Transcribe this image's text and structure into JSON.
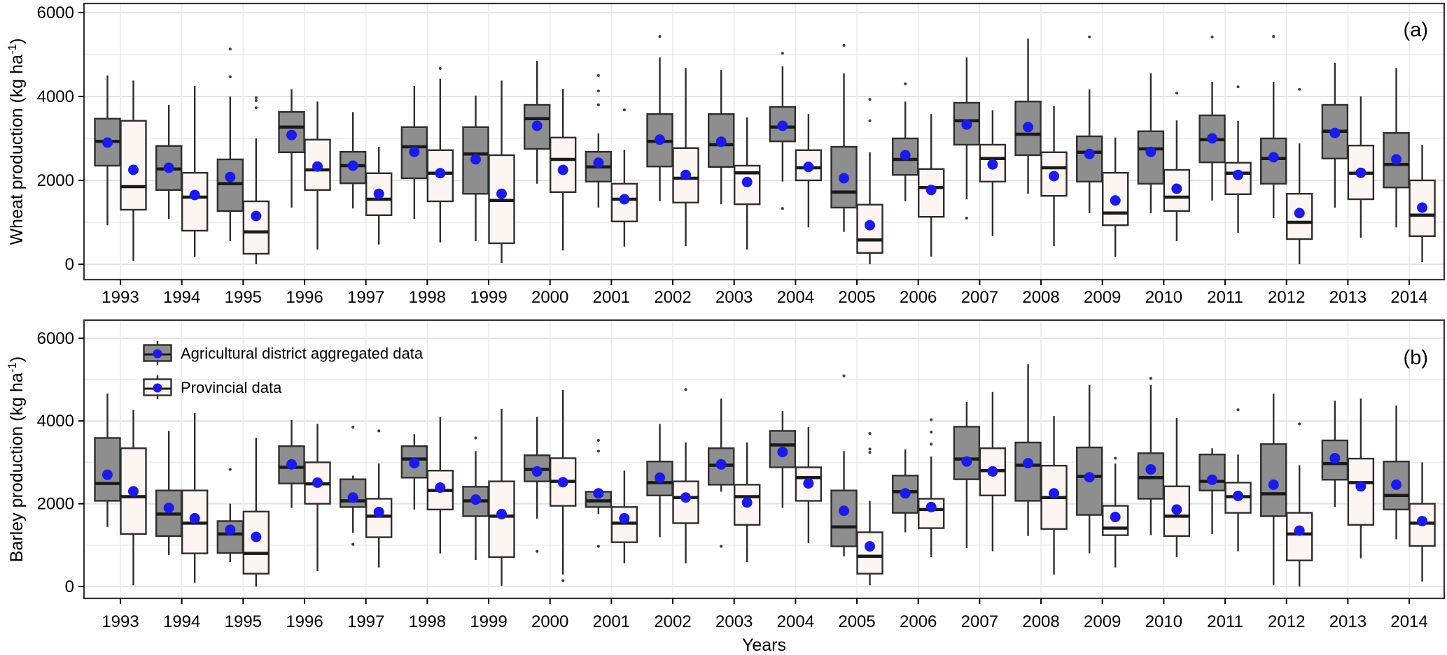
{
  "xlabel": "Years",
  "panel_tags": {
    "a": "(a)",
    "b": "(b)"
  },
  "legend": {
    "position": "top-left inside panel (b)",
    "items": [
      {
        "label": "Agricultural district aggregated data",
        "swatch_fill": "#8e8e8e"
      },
      {
        "label": "Provincial data",
        "swatch_fill": "#fdf5f1"
      }
    ]
  },
  "colors": {
    "district_box_fill": "#8e8e8e",
    "provincial_box_fill": "#fdf5f1",
    "box_border": "#2e2e2e",
    "median_line": "#1a1a1a",
    "mean_dot": "#1a1af0",
    "outlier_dot": "#404040",
    "grid_major": "#e3e3e3",
    "grid_minor": "#eeeeee",
    "frame": "#333333",
    "background": "#ffffff"
  },
  "chart_data": [
    {
      "type": "boxplot",
      "panel_label": "(a)",
      "ylabel": "Wheat production (kg ha⁻¹)",
      "xlabel": "Years",
      "ylim": [
        0,
        6000
      ],
      "yticks": [
        0,
        2000,
        4000,
        6000
      ],
      "grid": "light gray horizontal lines every 1000, vertical line per year",
      "legend_position": "none (legend shown in panel b)",
      "categories": [
        1993,
        1994,
        1995,
        1996,
        1997,
        1998,
        1999,
        2000,
        2001,
        2002,
        2003,
        2004,
        2005,
        2006,
        2007,
        2008,
        2009,
        2010,
        2011,
        2012,
        2013,
        2014
      ],
      "box_format": [
        "whisker_low",
        "q1",
        "median",
        "q3",
        "whisker_high",
        "mean",
        "outliers"
      ],
      "series": [
        {
          "name": "Agricultural district aggregated data",
          "fill": "#8e8e8e",
          "boxes": [
            [
              930,
              2350,
              2930,
              3470,
              4500,
              2900,
              []
            ],
            [
              1080,
              1770,
              2270,
              2820,
              3800,
              2300,
              []
            ],
            [
              550,
              1270,
              1920,
              2500,
              4000,
              2080,
              [
                5130,
                4470
              ]
            ],
            [
              1350,
              2670,
              3270,
              3630,
              4170,
              3080,
              []
            ],
            [
              1330,
              1930,
              2350,
              2680,
              3630,
              2350,
              []
            ],
            [
              1080,
              2050,
              2800,
              3270,
              4250,
              2680,
              []
            ],
            [
              550,
              1680,
              2630,
              3270,
              4020,
              2500,
              []
            ],
            [
              1920,
              2750,
              3470,
              3800,
              4850,
              3300,
              []
            ],
            [
              1350,
              1970,
              2320,
              2680,
              3120,
              2420,
              [
                4500,
                4130,
                3800
              ]
            ],
            [
              1500,
              2330,
              2930,
              3580,
              4930,
              2970,
              [
                5430
              ]
            ],
            [
              1430,
              2320,
              2850,
              3580,
              4630,
              2920,
              []
            ],
            [
              1970,
              2930,
              3270,
              3750,
              4720,
              3300,
              [
                5030,
                1330
              ]
            ],
            [
              770,
              1350,
              1720,
              2800,
              4550,
              2050,
              [
                5220
              ]
            ],
            [
              1500,
              2130,
              2500,
              3000,
              3880,
              2600,
              [
                4300
              ]
            ],
            [
              1550,
              2850,
              3420,
              3850,
              4930,
              3330,
              [
                1100
              ]
            ],
            [
              1680,
              2600,
              3100,
              3880,
              5380,
              3270,
              []
            ],
            [
              1220,
              1970,
              2670,
              3050,
              4170,
              2630,
              [
                5420
              ]
            ],
            [
              1220,
              1920,
              2750,
              3170,
              4550,
              2680,
              []
            ],
            [
              1520,
              2430,
              2970,
              3550,
              4350,
              3000,
              [
                5420
              ]
            ],
            [
              1100,
              1920,
              2520,
              3000,
              4350,
              2550,
              [
                5430
              ]
            ],
            [
              1350,
              2520,
              3170,
              3800,
              4800,
              3130,
              []
            ],
            [
              880,
              1830,
              2380,
              3130,
              4680,
              2500,
              []
            ]
          ]
        },
        {
          "name": "Provincial data",
          "fill": "#fdf5f1",
          "boxes": [
            [
              80,
              1300,
              1850,
              3420,
              4380,
              2250,
              []
            ],
            [
              170,
              800,
              1600,
              2180,
              4250,
              1650,
              []
            ],
            [
              0,
              250,
              770,
              1500,
              3000,
              1150,
              [
                3970,
                3900,
                3730
              ]
            ],
            [
              350,
              1770,
              2250,
              2970,
              3880,
              2330,
              []
            ],
            [
              470,
              1170,
              1550,
              2170,
              2800,
              1680,
              []
            ],
            [
              520,
              1500,
              2170,
              2720,
              4420,
              2170,
              [
                4670
              ]
            ],
            [
              30,
              500,
              1520,
              2600,
              4380,
              1680,
              []
            ],
            [
              330,
              1720,
              2500,
              3020,
              4180,
              2250,
              []
            ],
            [
              420,
              1020,
              1550,
              1920,
              2720,
              1550,
              [
                3680
              ]
            ],
            [
              430,
              1470,
              2050,
              2770,
              4680,
              2130,
              []
            ],
            [
              350,
              1430,
              2180,
              2350,
              3500,
              1960,
              []
            ],
            [
              880,
              2000,
              2300,
              2720,
              3580,
              2320,
              []
            ],
            [
              0,
              270,
              580,
              1420,
              2670,
              930,
              [
                3930,
                3420
              ]
            ],
            [
              180,
              1130,
              1830,
              2270,
              3580,
              1770,
              []
            ],
            [
              670,
              1970,
              2520,
              2850,
              3670,
              2380,
              []
            ],
            [
              430,
              1630,
              2300,
              2670,
              3770,
              2100,
              []
            ],
            [
              170,
              930,
              1220,
              2180,
              3020,
              1520,
              []
            ],
            [
              550,
              1270,
              1600,
              2250,
              3430,
              1800,
              [
                4080
              ]
            ],
            [
              750,
              1670,
              2170,
              2420,
              3420,
              2130,
              [
                4230
              ]
            ],
            [
              0,
              600,
              1000,
              1680,
              2880,
              1220,
              [
                4170
              ]
            ],
            [
              630,
              1550,
              2170,
              2830,
              4000,
              2180,
              []
            ],
            [
              50,
              670,
              1170,
              2000,
              2850,
              1350,
              []
            ]
          ]
        }
      ]
    },
    {
      "type": "boxplot",
      "panel_label": "(b)",
      "ylabel": "Barley production (kg ha⁻¹)",
      "xlabel": "Years",
      "ylim": [
        0,
        6000
      ],
      "yticks": [
        0,
        2000,
        4000,
        6000
      ],
      "grid": "light gray horizontal lines every 1000, vertical line per year",
      "legend_position": "top-left inside panel",
      "categories": [
        1993,
        1994,
        1995,
        1996,
        1997,
        1998,
        1999,
        2000,
        2001,
        2002,
        2003,
        2004,
        2005,
        2006,
        2007,
        2008,
        2009,
        2010,
        2011,
        2012,
        2013,
        2014
      ],
      "box_format": [
        "whisker_low",
        "q1",
        "median",
        "q3",
        "whisker_high",
        "mean",
        "outliers"
      ],
      "series": [
        {
          "name": "Agricultural district aggregated data",
          "fill": "#8e8e8e",
          "boxes": [
            [
              1440,
              2070,
              2490,
              3590,
              4660,
              2700,
              []
            ],
            [
              760,
              1220,
              1750,
              2320,
              3760,
              1900,
              []
            ],
            [
              590,
              810,
              1270,
              1580,
              2000,
              1370,
              [
                2830
              ]
            ],
            [
              1900,
              2490,
              2880,
              3390,
              4020,
              2950,
              []
            ],
            [
              1300,
              1920,
              2070,
              2590,
              2680,
              2150,
              [
                3850,
                1020
              ]
            ],
            [
              1860,
              2630,
              3080,
              3390,
              3680,
              2980,
              []
            ],
            [
              640,
              1700,
              2070,
              2410,
              3270,
              2100,
              [
                3590
              ]
            ],
            [
              1640,
              2540,
              2830,
              3170,
              4100,
              2780,
              [
                850
              ]
            ],
            [
              1750,
              1920,
              2070,
              2290,
              2300,
              2250,
              [
                3530,
                3270,
                970
              ]
            ],
            [
              1190,
              2200,
              2510,
              3020,
              3930,
              2630,
              []
            ],
            [
              2290,
              2460,
              2930,
              3340,
              4540,
              2950,
              [
                970
              ]
            ],
            [
              1900,
              2880,
              3420,
              3760,
              4240,
              3250,
              []
            ],
            [
              730,
              970,
              1440,
              2320,
              3270,
              1830,
              [
                5090
              ]
            ],
            [
              1310,
              1780,
              2290,
              2680,
              3310,
              2250,
              []
            ],
            [
              930,
              2590,
              3080,
              3860,
              4460,
              3020,
              []
            ],
            [
              1220,
              2070,
              2930,
              3480,
              5370,
              2980,
              []
            ],
            [
              800,
              1730,
              2660,
              3360,
              4870,
              2640,
              []
            ],
            [
              1240,
              2120,
              2630,
              3220,
              4870,
              2830,
              [
                5030
              ]
            ],
            [
              1270,
              2320,
              2540,
              3190,
              3340,
              2580,
              []
            ],
            [
              30,
              1700,
              2240,
              3440,
              4660,
              2460,
              []
            ],
            [
              1920,
              2580,
              2970,
              3530,
              4490,
              3100,
              []
            ],
            [
              1140,
              1860,
              2200,
              3020,
              4370,
              2460,
              []
            ]
          ]
        },
        {
          "name": "Provincial data",
          "fill": "#fdf5f1",
          "boxes": [
            [
              30,
              1270,
              2170,
              3340,
              4270,
              2300,
              []
            ],
            [
              90,
              800,
              1530,
              2320,
              4190,
              1650,
              []
            ],
            [
              0,
              310,
              800,
              1810,
              3590,
              1200,
              []
            ],
            [
              370,
              2000,
              2480,
              3000,
              3930,
              2510,
              []
            ],
            [
              460,
              1190,
              1700,
              2120,
              2970,
              1800,
              [
                3760
              ]
            ],
            [
              800,
              1860,
              2320,
              2800,
              4100,
              2390,
              []
            ],
            [
              20,
              710,
              1700,
              2540,
              4290,
              1750,
              []
            ],
            [
              290,
              1950,
              2540,
              3100,
              4750,
              2520,
              [
                140
              ]
            ],
            [
              560,
              1070,
              1530,
              1920,
              2800,
              1650,
              []
            ],
            [
              560,
              1530,
              2150,
              2540,
              3480,
              2150,
              [
                4760
              ]
            ],
            [
              590,
              1490,
              2170,
              2460,
              3480,
              2030,
              []
            ],
            [
              1050,
              2070,
              2630,
              2880,
              3850,
              2490,
              []
            ],
            [
              30,
              310,
              730,
              1310,
              2070,
              970,
              [
                3700,
                3320,
                3240
              ]
            ],
            [
              710,
              1410,
              1860,
              2120,
              3140,
              1920,
              [
                4030,
                3730,
                3440
              ]
            ],
            [
              850,
              2200,
              2800,
              3340,
              4700,
              2780,
              []
            ],
            [
              290,
              1390,
              2150,
              2920,
              4120,
              2250,
              []
            ],
            [
              460,
              1240,
              1410,
              1950,
              2970,
              1680,
              [
                3100
              ]
            ],
            [
              710,
              1220,
              1700,
              2420,
              4070,
              1860,
              []
            ],
            [
              850,
              1780,
              2170,
              2510,
              3190,
              2190,
              [
                4270
              ]
            ],
            [
              0,
              630,
              1270,
              1780,
              2930,
              1350,
              [
                3930
              ]
            ],
            [
              680,
              1490,
              2510,
              3090,
              4540,
              2420,
              []
            ],
            [
              120,
              980,
              1530,
              2000,
              3000,
              1580,
              []
            ]
          ]
        }
      ]
    }
  ]
}
